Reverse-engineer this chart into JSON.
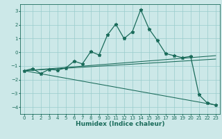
{
  "xlabel": "Humidex (Indice chaleur)",
  "bg_color": "#cce8e8",
  "grid_color": "#99cccc",
  "line_color": "#1a6b5a",
  "xlim": [
    -0.5,
    23.5
  ],
  "ylim": [
    -4.5,
    3.5
  ],
  "xticks": [
    0,
    1,
    2,
    3,
    4,
    5,
    6,
    7,
    8,
    9,
    10,
    11,
    12,
    13,
    14,
    15,
    16,
    17,
    18,
    19,
    20,
    21,
    22,
    23
  ],
  "yticks": [
    -4,
    -3,
    -2,
    -1,
    0,
    1,
    2,
    3
  ],
  "main_x": [
    0,
    1,
    2,
    3,
    4,
    5,
    6,
    7,
    8,
    9,
    10,
    11,
    12,
    13,
    14,
    15,
    16,
    17,
    18,
    19,
    20,
    21,
    22,
    23
  ],
  "main_y": [
    -1.35,
    -1.2,
    -1.55,
    -1.25,
    -1.3,
    -1.15,
    -0.65,
    -0.85,
    0.05,
    -0.2,
    1.25,
    2.05,
    1.0,
    1.5,
    3.1,
    1.7,
    0.85,
    -0.1,
    -0.25,
    -0.4,
    -0.3,
    -3.1,
    -3.7,
    -3.85
  ],
  "line1_x": [
    0,
    23
  ],
  "line1_y": [
    -1.35,
    -0.25
  ],
  "line2_x": [
    0,
    23
  ],
  "line2_y": [
    -1.35,
    -0.5
  ],
  "line3_x": [
    0,
    23
  ],
  "line3_y": [
    -1.35,
    -3.85
  ],
  "marker": "*",
  "markersize": 3.5,
  "linewidth": 0.9,
  "tick_fontsize": 5.0,
  "xlabel_fontsize": 6.5
}
